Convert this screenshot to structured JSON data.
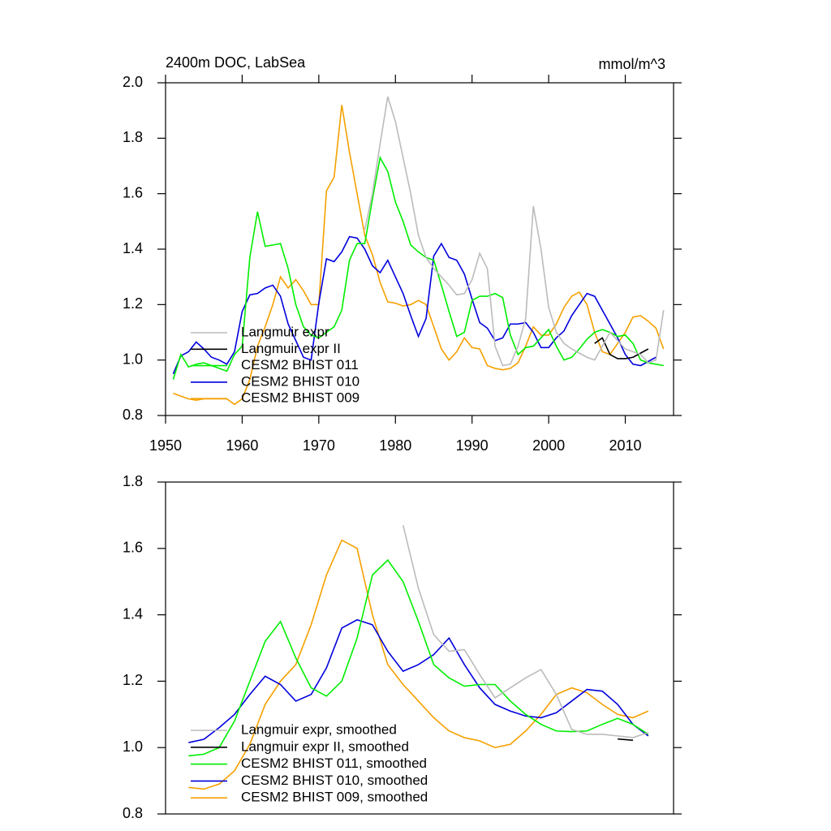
{
  "chart_data": [
    {
      "type": "line",
      "title": "2400m DOC, LabSea",
      "subtitle": "mmol/m^3",
      "x": [
        1951,
        1952,
        1953,
        1954,
        1955,
        1956,
        1957,
        1958,
        1959,
        1960,
        1961,
        1962,
        1963,
        1964,
        1965,
        1966,
        1967,
        1968,
        1969,
        1970,
        1971,
        1972,
        1973,
        1974,
        1975,
        1976,
        1977,
        1978,
        1979,
        1980,
        1981,
        1982,
        1983,
        1984,
        1985,
        1986,
        1987,
        1988,
        1989,
        1990,
        1991,
        1992,
        1993,
        1994,
        1995,
        1996,
        1997,
        1998,
        1999,
        2000,
        2001,
        2002,
        2003,
        2004,
        2005,
        2006,
        2007,
        2008,
        2009,
        2010,
        2011,
        2012,
        2013,
        2014,
        2015
      ],
      "series": [
        {
          "name": "Langmuir expr",
          "color": "#bbbbbb",
          "values": [
            null,
            null,
            null,
            null,
            null,
            null,
            null,
            null,
            null,
            null,
            null,
            null,
            null,
            null,
            null,
            null,
            null,
            null,
            null,
            null,
            null,
            null,
            null,
            null,
            null,
            1.47,
            1.6,
            1.78,
            1.95,
            1.86,
            1.73,
            1.6,
            1.45,
            1.37,
            1.33,
            1.3,
            1.27,
            1.235,
            1.24,
            1.29,
            1.385,
            1.33,
            1.05,
            0.98,
            0.985,
            1.05,
            1.15,
            1.555,
            1.4,
            1.19,
            1.1,
            1.06,
            1.04,
            1.025,
            1.01,
            1.0,
            1.05,
            1.1,
            1.07,
            1.04,
            1.03,
            1.02,
            0.99,
            1.0,
            1.18
          ]
        },
        {
          "name": "Langmuir expr II",
          "color": "#000000",
          "values": [
            null,
            null,
            null,
            null,
            null,
            null,
            null,
            null,
            null,
            null,
            null,
            null,
            null,
            null,
            null,
            null,
            null,
            null,
            null,
            null,
            null,
            null,
            null,
            null,
            null,
            null,
            null,
            null,
            null,
            null,
            null,
            null,
            null,
            null,
            null,
            null,
            null,
            null,
            null,
            null,
            null,
            null,
            null,
            null,
            null,
            null,
            null,
            null,
            null,
            null,
            null,
            null,
            null,
            null,
            null,
            1.06,
            1.08,
            1.02,
            1.005,
            1.005,
            1.01,
            1.025,
            1.04,
            null,
            null
          ]
        },
        {
          "name": "CESM2 BHIST 011",
          "color": "#00ee00",
          "values": [
            0.93,
            1.02,
            0.975,
            0.985,
            0.99,
            0.98,
            0.97,
            0.96,
            1.02,
            1.05,
            1.37,
            1.535,
            1.41,
            1.415,
            1.42,
            1.33,
            1.2,
            1.12,
            1.09,
            1.08,
            1.1,
            1.12,
            1.18,
            1.36,
            1.42,
            1.42,
            1.58,
            1.73,
            1.68,
            1.57,
            1.5,
            1.415,
            1.39,
            1.37,
            1.36,
            1.27,
            1.175,
            1.085,
            1.1,
            1.215,
            1.23,
            1.23,
            1.24,
            1.225,
            1.09,
            1.02,
            1.045,
            1.05,
            1.08,
            1.11,
            1.05,
            1.0,
            1.01,
            1.04,
            1.075,
            1.1,
            1.11,
            1.1,
            1.085,
            1.09,
            1.06,
            1.0,
            0.99,
            0.985,
            0.98
          ]
        },
        {
          "name": "CESM2 BHIST 010",
          "color": "#0000dd",
          "values": [
            0.95,
            1.015,
            1.03,
            1.065,
            1.04,
            1.01,
            1.0,
            0.985,
            1.03,
            1.175,
            1.235,
            1.24,
            1.26,
            1.27,
            1.23,
            1.13,
            1.07,
            1.01,
            1.0,
            1.205,
            1.365,
            1.355,
            1.39,
            1.445,
            1.44,
            1.4,
            1.34,
            1.315,
            1.36,
            1.3,
            1.24,
            1.16,
            1.085,
            1.15,
            1.375,
            1.42,
            1.37,
            1.36,
            1.31,
            1.22,
            1.135,
            1.115,
            1.07,
            1.08,
            1.13,
            1.13,
            1.135,
            1.1,
            1.045,
            1.045,
            1.08,
            1.105,
            1.16,
            1.2,
            1.24,
            1.23,
            1.18,
            1.13,
            1.08,
            1.02,
            0.985,
            0.98,
            0.995,
            1.01,
            null
          ]
        },
        {
          "name": "CESM2 BHIST 009",
          "color": "#f5a000",
          "values": [
            0.88,
            0.87,
            0.86,
            0.855,
            0.86,
            0.86,
            0.86,
            0.86,
            0.84,
            0.86,
            0.93,
            1.05,
            1.12,
            1.2,
            1.3,
            1.26,
            1.29,
            1.25,
            1.2,
            1.2,
            1.61,
            1.66,
            1.92,
            1.75,
            1.6,
            1.45,
            1.38,
            1.28,
            1.21,
            1.205,
            1.195,
            1.2,
            1.215,
            1.2,
            1.12,
            1.04,
            1.0,
            1.03,
            1.08,
            1.045,
            1.04,
            0.98,
            0.97,
            0.965,
            0.97,
            0.99,
            1.05,
            1.12,
            1.09,
            1.09,
            1.13,
            1.19,
            1.23,
            1.245,
            1.2,
            1.1,
            1.03,
            1.02,
            1.06,
            1.1,
            1.155,
            1.16,
            1.14,
            1.115,
            1.04
          ]
        }
      ],
      "xlim": [
        1950,
        2016.3
      ],
      "xticks": [
        1950,
        1960,
        1970,
        1980,
        1990,
        2000,
        2010
      ],
      "ylim": [
        0.8,
        2.0
      ],
      "yticks": [
        0.8,
        {
          "value": 1,
          "label": "1.0"
        },
        1.2,
        1.4,
        1.6,
        1.8,
        {
          "value": 2,
          "label": "2.0"
        }
      ],
      "legend": "lower left"
    },
    {
      "type": "line",
      "x": [
        1951,
        1953,
        1955,
        1957,
        1959,
        1961,
        1963,
        1965,
        1967,
        1969,
        1971,
        1973,
        1975,
        1977,
        1979,
        1981,
        1983,
        1985,
        1987,
        1989,
        1991,
        1993,
        1995,
        1997,
        1999,
        2001,
        2003,
        2005,
        2007,
        2009,
        2011,
        2013
      ],
      "series": [
        {
          "name": "Langmuir expr, smoothed",
          "color": "#bbbbbb",
          "values": [
            null,
            null,
            null,
            null,
            null,
            null,
            null,
            null,
            null,
            null,
            null,
            null,
            null,
            null,
            null,
            1.67,
            1.48,
            1.34,
            1.29,
            1.295,
            1.22,
            1.15,
            1.18,
            1.21,
            1.235,
            1.16,
            1.055,
            1.04,
            1.04,
            1.035,
            1.03,
            1.045
          ]
        },
        {
          "name": "Langmuir expr II, smoothed",
          "color": "#000000",
          "values": [
            null,
            null,
            null,
            null,
            null,
            null,
            null,
            null,
            null,
            null,
            null,
            null,
            null,
            null,
            null,
            null,
            null,
            null,
            null,
            null,
            null,
            null,
            null,
            null,
            null,
            null,
            null,
            null,
            null,
            1.026,
            1.022,
            null
          ]
        },
        {
          "name": "CESM2 BHIST 011, smoothed",
          "color": "#00ee00",
          "values": [
            null,
            0.975,
            0.98,
            1.0,
            1.08,
            1.2,
            1.32,
            1.38,
            1.27,
            1.18,
            1.155,
            1.2,
            1.33,
            1.52,
            1.565,
            1.5,
            1.38,
            1.25,
            1.21,
            1.185,
            1.19,
            1.19,
            1.14,
            1.1,
            1.07,
            1.05,
            1.048,
            1.05,
            1.07,
            1.088,
            1.07,
            1.04
          ]
        },
        {
          "name": "CESM2 BHIST 010, smoothed",
          "color": "#0000dd",
          "values": [
            null,
            1.015,
            1.025,
            1.06,
            1.1,
            1.16,
            1.215,
            1.19,
            1.14,
            1.16,
            1.24,
            1.36,
            1.385,
            1.37,
            1.29,
            1.23,
            1.25,
            1.28,
            1.33,
            1.25,
            1.18,
            1.13,
            1.11,
            1.095,
            1.09,
            1.105,
            1.14,
            1.175,
            1.17,
            1.13,
            1.07,
            1.035
          ]
        },
        {
          "name": "CESM2 BHIST 009, smoothed",
          "color": "#f5a000",
          "values": [
            null,
            0.88,
            0.875,
            0.89,
            0.93,
            1.01,
            1.13,
            1.2,
            1.25,
            1.37,
            1.52,
            1.625,
            1.6,
            1.4,
            1.25,
            1.19,
            1.14,
            1.09,
            1.05,
            1.03,
            1.02,
            1.0,
            1.01,
            1.05,
            1.1,
            1.16,
            1.18,
            1.165,
            1.13,
            1.1,
            1.09,
            1.11
          ]
        }
      ],
      "xlim": [
        1950,
        2016.3
      ],
      "ylim": [
        0.8,
        1.8
      ],
      "yticks": [
        0.8,
        {
          "value": 1,
          "label": "1.0"
        },
        1.2,
        1.4,
        1.6,
        1.8
      ],
      "legend": "lower left"
    }
  ]
}
